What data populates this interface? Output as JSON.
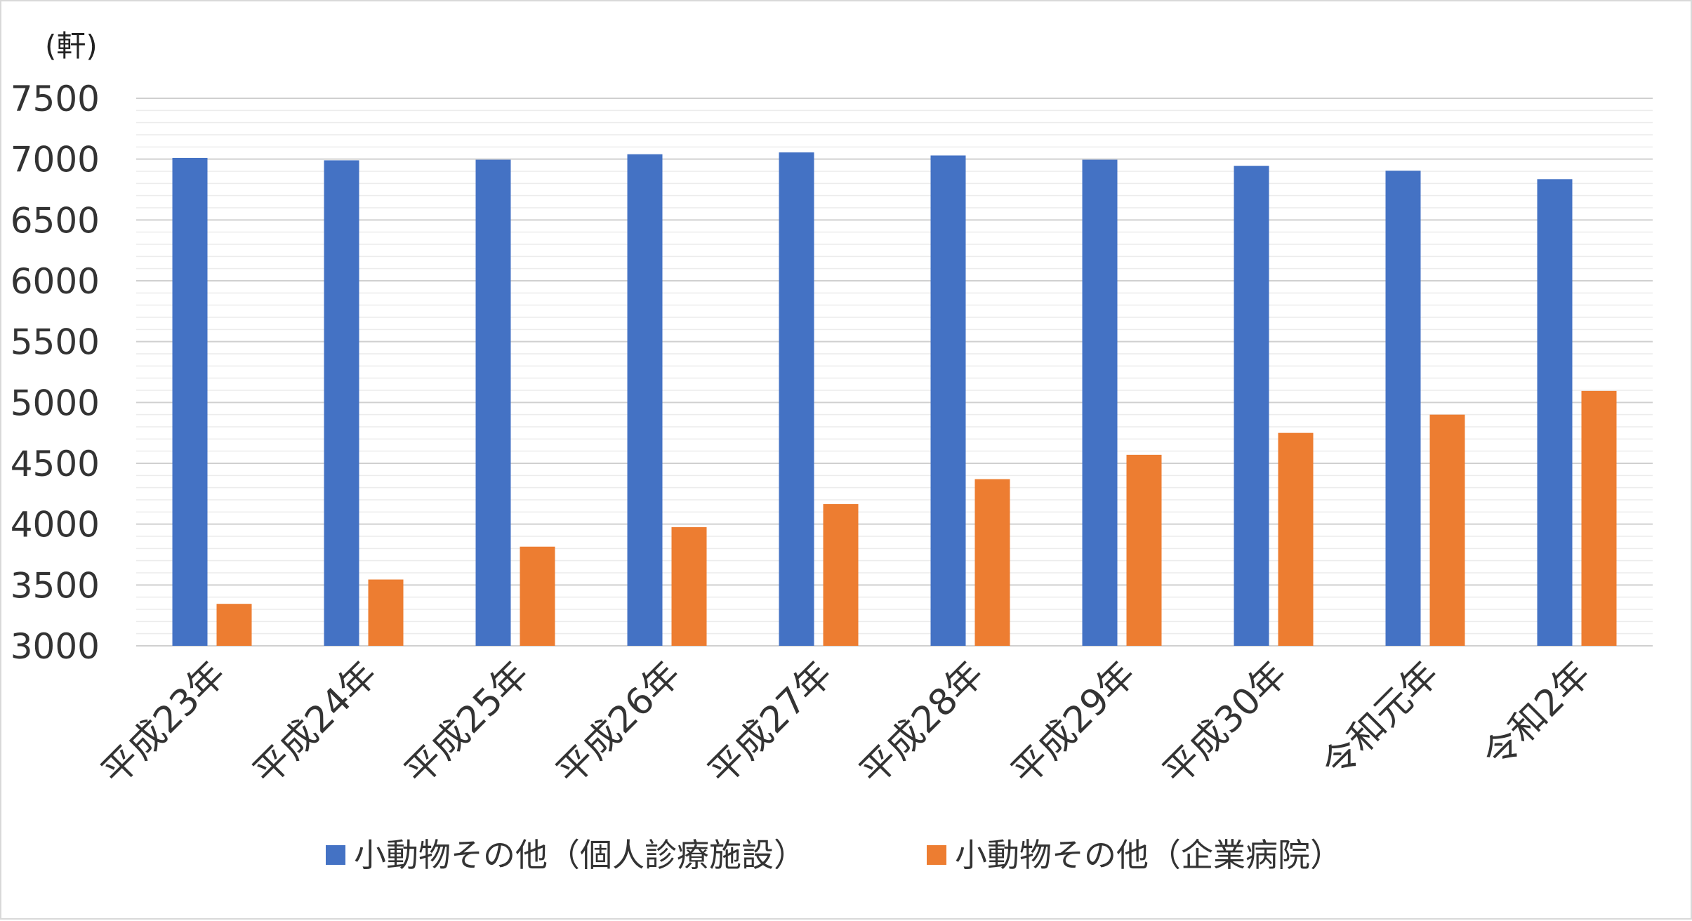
{
  "chart_data": {
    "type": "bar",
    "unit_label": "(軒)",
    "categories": [
      "平成23年",
      "平成24年",
      "平成25年",
      "平成26年",
      "平成27年",
      "平成28年",
      "平成29年",
      "平成30年",
      "令和元年",
      "令和2年"
    ],
    "series": [
      {
        "name": "小動物その他（個人診療施設）",
        "color": "#4472c4",
        "values": [
          7010,
          6990,
          6995,
          7040,
          7055,
          7030,
          6995,
          6945,
          6905,
          6835
        ]
      },
      {
        "name": "小動物その他（企業病院）",
        "color": "#ed7d31",
        "values": [
          3345,
          3545,
          3815,
          3975,
          4165,
          4370,
          4570,
          4750,
          4900,
          5095
        ]
      }
    ],
    "ylim": [
      3000,
      7500
    ],
    "yticks": [
      3000,
      3500,
      4000,
      4500,
      5000,
      5500,
      6000,
      6500,
      7000,
      7500
    ],
    "minor_grid_step": 100,
    "grid": true,
    "legend_position": "bottom"
  }
}
